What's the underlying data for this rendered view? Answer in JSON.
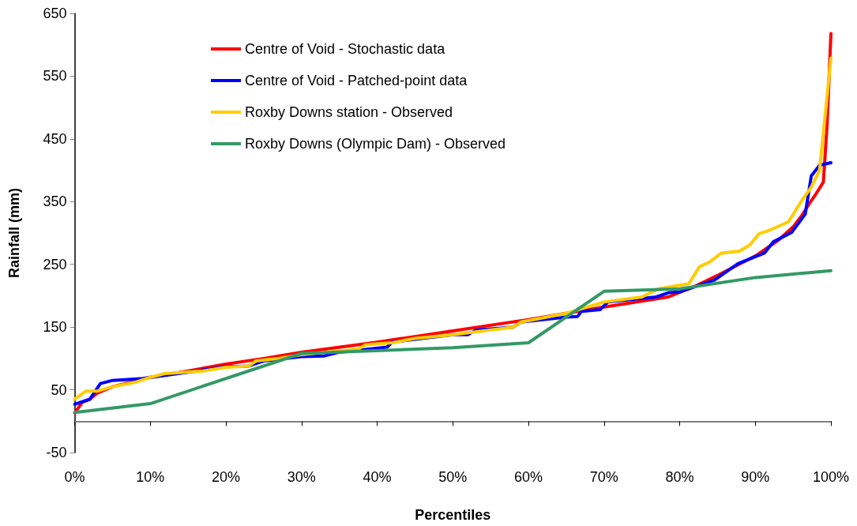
{
  "chart_data": {
    "type": "line",
    "xlabel": "Percentiles",
    "ylabel": "Rainfall (mm)",
    "xlim": [
      0,
      100
    ],
    "xticks": [
      {
        "value": 0,
        "label": "0%"
      },
      {
        "value": 10,
        "label": "10%"
      },
      {
        "value": 20,
        "label": "20%"
      },
      {
        "value": 30,
        "label": "30%"
      },
      {
        "value": 40,
        "label": "40%"
      },
      {
        "value": 50,
        "label": "50%"
      },
      {
        "value": 60,
        "label": "60%"
      },
      {
        "value": 70,
        "label": "70%"
      },
      {
        "value": 80,
        "label": "80%"
      },
      {
        "value": 90,
        "label": "90%"
      },
      {
        "value": 100,
        "label": "100%"
      }
    ],
    "ylim": [
      -50,
      650
    ],
    "yticks": [
      -50,
      50,
      150,
      250,
      350,
      450,
      550,
      650
    ],
    "grid": false,
    "legend": "top left",
    "marker": "none",
    "line_style": "solid",
    "series": [
      {
        "name": "Centre of Void - Stochastic data",
        "color": "#ff0000",
        "x": [
          0,
          1,
          2,
          3,
          5,
          10,
          15,
          20,
          25,
          30,
          40,
          50,
          60,
          70,
          78.5,
          82,
          85.1,
          90.1,
          93.1,
          95.1,
          96.1,
          97.1,
          98,
          99,
          99.5,
          100
        ],
        "values": [
          13,
          30,
          35,
          45,
          55,
          70,
          80,
          91,
          100,
          110,
          126,
          144,
          162,
          182,
          198,
          215,
          233,
          264,
          289,
          311,
          327,
          346,
          362,
          381,
          474,
          618
        ]
      },
      {
        "name": "Centre of Void - Patched-point data",
        "color": "#0000ff",
        "x": [
          0,
          2,
          3.4,
          5,
          9,
          15,
          20,
          23,
          25,
          28,
          30,
          33,
          35,
          41.3,
          42,
          50,
          52,
          53,
          58,
          59,
          65,
          66.5,
          67,
          69.5,
          70.5,
          76.9,
          78.6,
          80,
          84.6,
          87.7,
          91.2,
          92.4,
          94.8,
          96.6,
          97.4,
          98.5,
          100
        ],
        "values": [
          27,
          35,
          60,
          65,
          68,
          78,
          87,
          88,
          96,
          100,
          103,
          104,
          110,
          118,
          126,
          138,
          138,
          145,
          150,
          158,
          166,
          167,
          175,
          178,
          190,
          198,
          205,
          206,
          225,
          251,
          268,
          286,
          301,
          330,
          391,
          408,
          412
        ]
      },
      {
        "name": "Roxby Downs station - Observed",
        "color": "#ffcc00",
        "x": [
          0,
          1.5,
          3,
          5,
          8,
          10,
          12,
          17,
          20,
          23,
          24,
          27,
          30,
          35,
          37.5,
          38.5,
          42,
          45,
          50,
          58,
          59,
          65,
          70,
          75,
          77.2,
          81.2,
          82.6,
          84,
          85.5,
          87.9,
          89.3,
          90.5,
          92,
          94.4,
          96.1,
          97.4,
          98.5,
          100
        ],
        "values": [
          35,
          48,
          48,
          55,
          62,
          70,
          76,
          80,
          86,
          88,
          96,
          100,
          106,
          112,
          115,
          122,
          125,
          132,
          138,
          150,
          158,
          172,
          190,
          198,
          211,
          219,
          246,
          254,
          268,
          271,
          281,
          299,
          305,
          318,
          351,
          373,
          400,
          579
        ]
      },
      {
        "name": "Roxby Downs (Olympic Dam) - Observed",
        "color": "#339966",
        "x": [
          0,
          10,
          30,
          50,
          60,
          70,
          80,
          90,
          100
        ],
        "values": [
          14,
          28,
          108,
          117,
          125,
          207,
          211,
          229,
          240
        ]
      }
    ]
  }
}
